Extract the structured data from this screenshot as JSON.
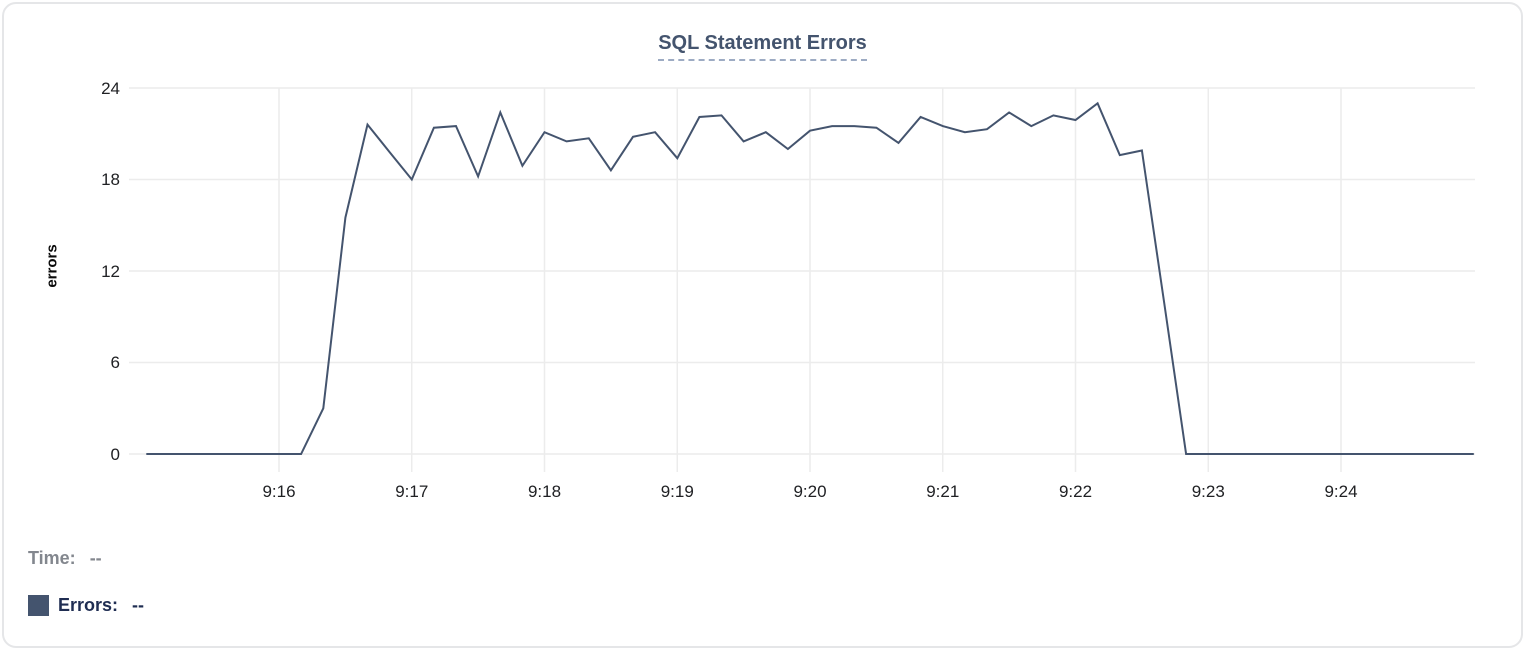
{
  "colors": {
    "line": "#44546E",
    "grid": "#ECECEC",
    "title": "#44546E",
    "title_underline": "#9DABC3",
    "axis_text": "#202124",
    "legend_time_text": "#83878E",
    "legend_errors_text": "#1F2D52",
    "legend_swatch": "#44546E",
    "card_border": "#E5E6E8"
  },
  "legend": {
    "time_label": "Time:",
    "time_value": "--",
    "errors_label": "Errors:",
    "errors_value": "--"
  },
  "chart_data": {
    "type": "line",
    "title": "SQL Statement Errors",
    "xlabel": "",
    "ylabel": "errors",
    "x_start": "9:15:00",
    "x_end": "9:25:00",
    "interval_seconds": 10,
    "x_ticks": [
      "9:16",
      "9:17",
      "9:18",
      "9:19",
      "9:20",
      "9:21",
      "9:22",
      "9:23",
      "9:24"
    ],
    "y_ticks": [
      0,
      6,
      12,
      18,
      24
    ],
    "ylim": [
      0,
      24
    ],
    "grid": true,
    "legend_position": "bottom-left",
    "series": [
      {
        "name": "Errors",
        "color": "#44546E",
        "values": [
          0,
          0,
          0,
          0,
          0,
          0,
          0,
          0,
          3,
          15.5,
          21.6,
          19.8,
          18,
          21.4,
          21.5,
          18.2,
          22.4,
          18.9,
          21.1,
          20.5,
          20.7,
          18.6,
          20.8,
          21.1,
          19.4,
          22.1,
          22.2,
          20.5,
          21.1,
          20,
          21.2,
          21.5,
          21.5,
          21.4,
          20.4,
          22.1,
          21.5,
          21.1,
          21.3,
          22.4,
          21.5,
          22.2,
          21.9,
          23,
          19.6,
          19.9,
          10,
          0,
          0,
          0,
          0,
          0,
          0,
          0,
          0,
          0,
          0,
          0,
          0,
          0,
          0
        ]
      }
    ]
  }
}
